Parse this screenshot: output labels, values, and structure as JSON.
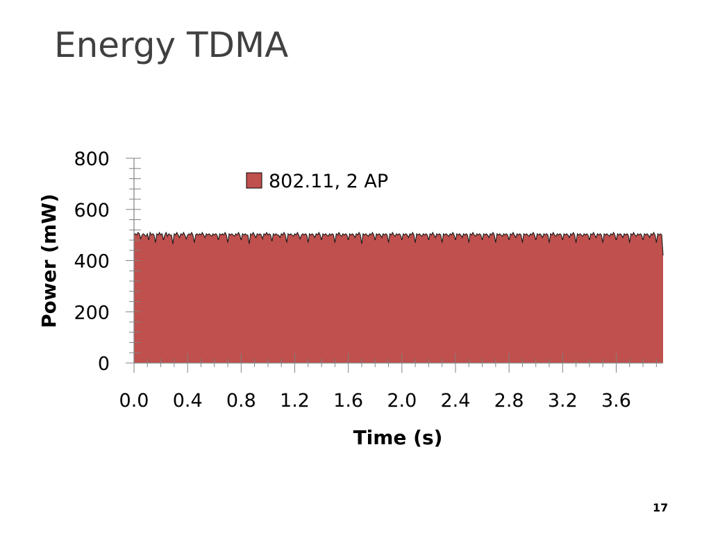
{
  "slide": {
    "title": "Energy TDMA",
    "page_number": "17"
  },
  "colors": {
    "red_area": "#C0504D",
    "blue_area": "#4F81BD",
    "green_area": "#9BBB59",
    "outline": "#1a1a1a",
    "axis": "#808080"
  },
  "chart_data": {
    "type": "area",
    "xlabel": "Time (s)",
    "ylabel": "Power (mW)",
    "xlim": [
      0,
      3.95
    ],
    "ylim": [
      0,
      800
    ],
    "x_ticks": [
      "0.0",
      "0.4",
      "0.8",
      "1.2",
      "1.6",
      "2.0",
      "2.4",
      "2.8",
      "3.2",
      "3.6"
    ],
    "y_ticks": [
      "0",
      "200",
      "400",
      "600",
      "800"
    ],
    "legend": {
      "position": "top-center",
      "entries": [
        "802.11, 2 AP"
      ]
    },
    "series": [
      {
        "name": "802.11, 2 AP",
        "color": "#C0504D",
        "x_step": 0.01,
        "values": [
          500,
          505,
          500,
          510,
          505,
          485,
          500,
          505,
          500,
          495,
          505,
          480,
          510,
          500,
          505,
          500,
          470,
          505,
          500,
          510,
          500,
          505,
          480,
          500,
          510,
          495,
          505,
          500,
          500,
          465,
          505,
          500,
          510,
          500,
          490,
          505,
          500,
          510,
          500,
          485,
          500,
          505,
          500,
          510,
          500,
          470,
          500,
          505,
          500,
          505,
          500,
          510,
          500,
          490,
          505,
          500,
          505,
          500,
          495,
          505,
          500,
          505,
          500,
          480,
          505,
          500,
          505,
          500,
          510,
          500,
          470,
          505,
          500,
          505,
          500,
          495,
          505,
          500,
          510,
          500,
          480,
          505,
          500,
          505,
          500,
          500,
          465,
          505,
          500,
          510,
          500,
          490,
          505,
          500,
          505,
          500,
          485,
          505,
          500,
          510,
          500,
          505,
          500,
          475,
          505,
          500,
          505,
          500,
          500,
          490,
          505,
          500,
          510,
          500,
          470,
          505,
          500,
          505,
          500,
          495,
          505,
          500,
          510,
          500,
          485,
          500,
          505,
          500,
          505,
          500,
          470,
          505,
          500,
          505,
          500,
          490,
          505,
          500,
          510,
          500,
          480,
          505,
          500,
          505,
          500,
          495,
          505,
          500,
          505,
          500,
          470,
          505,
          500,
          510,
          500,
          495,
          505,
          500,
          505,
          500,
          480,
          505,
          500,
          505,
          500,
          490,
          505,
          500,
          510,
          500,
          465,
          505,
          500,
          505,
          500,
          495,
          505,
          500,
          510,
          500,
          480,
          505,
          500,
          505,
          500,
          490,
          505,
          500,
          505,
          500,
          470,
          505,
          500,
          510,
          500,
          495,
          505,
          500,
          505,
          500,
          480,
          505,
          500,
          505,
          500,
          490,
          505,
          500,
          510,
          500,
          470,
          505,
          500,
          505,
          500,
          495,
          505,
          500,
          505,
          500,
          480,
          505,
          500,
          510,
          500,
          490,
          505,
          500,
          505,
          500,
          470,
          505,
          500,
          505,
          500,
          495,
          505,
          500,
          510,
          500,
          480,
          505,
          500,
          505,
          500,
          490,
          505,
          500,
          505,
          500,
          470,
          505,
          500,
          510,
          500,
          495,
          505,
          500,
          505,
          500,
          480,
          505,
          500,
          505,
          500,
          490,
          505,
          500,
          510,
          500,
          470,
          505,
          500,
          505,
          500,
          495,
          505,
          500,
          505,
          500,
          480,
          505,
          500,
          510,
          500,
          490,
          505,
          500,
          505,
          500,
          470,
          505,
          500,
          505,
          500,
          495,
          505,
          500,
          510,
          500,
          480,
          505,
          500,
          505,
          500,
          490,
          505,
          500,
          505,
          500,
          470,
          505,
          500,
          510,
          500,
          495,
          505,
          500,
          505,
          500,
          480,
          505,
          500,
          505,
          500,
          490,
          505,
          500,
          510,
          500,
          470,
          505,
          500,
          505,
          500,
          495,
          505,
          500,
          505,
          500,
          480,
          505,
          500,
          510,
          500,
          490,
          505,
          500,
          505,
          500,
          470,
          505,
          500,
          505,
          500,
          495,
          505,
          500,
          510,
          500,
          480,
          505,
          500,
          505,
          500,
          490,
          505,
          500,
          505,
          500,
          470,
          505,
          500,
          510,
          500,
          495,
          505,
          500,
          505,
          500,
          480,
          505,
          500,
          505,
          500,
          490,
          505,
          500,
          510,
          500,
          470,
          505,
          500,
          505,
          500,
          420
        ]
      }
    ]
  }
}
